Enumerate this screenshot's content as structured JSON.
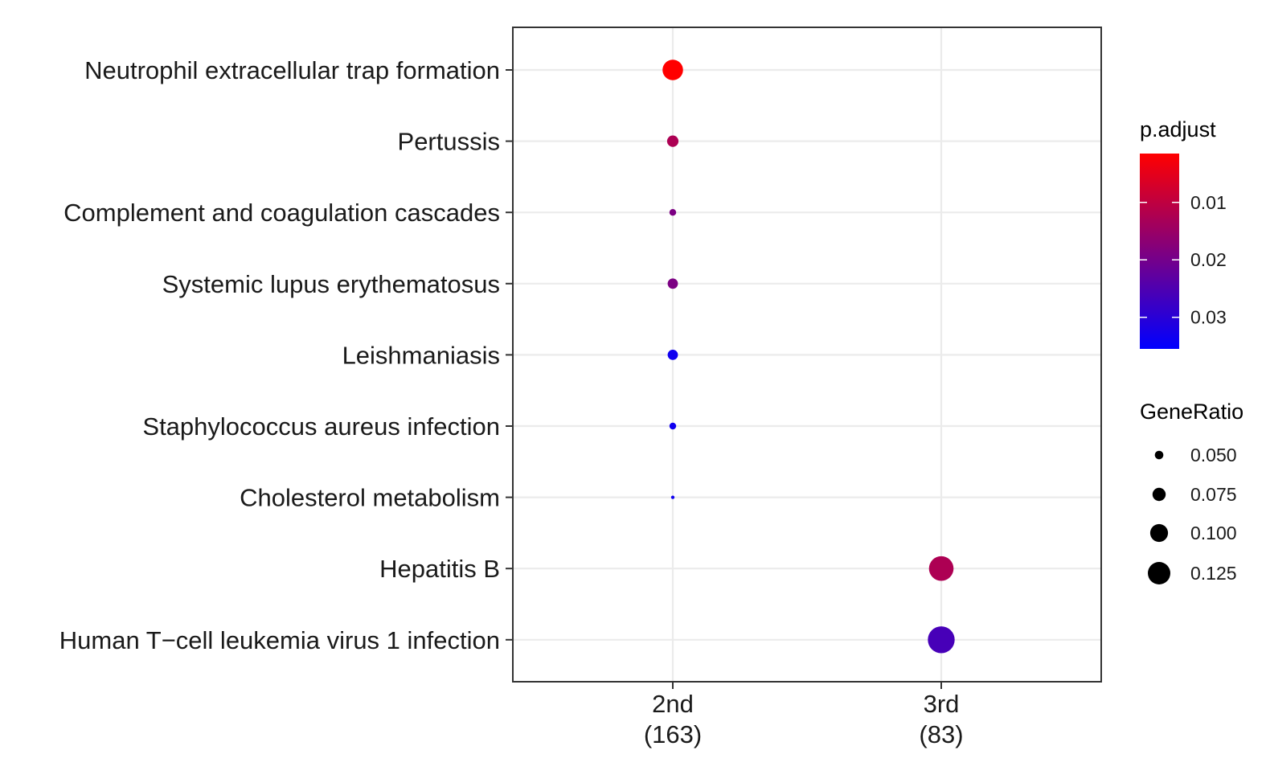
{
  "chart_data": {
    "type": "scatter",
    "title": "",
    "xlabel": "",
    "ylabel": "",
    "x_categories": [
      {
        "label": "2nd",
        "count": "(163)"
      },
      {
        "label": "3rd",
        "count": "(83)"
      }
    ],
    "y_categories": [
      "Neutrophil extracellular trap formation",
      "Pertussis",
      "Complement and coagulation cascades",
      "Systemic lupus erythematosus",
      "Leishmaniasis",
      "Staphylococcus aureus infection",
      "Cholesterol metabolism",
      "Hepatitis B",
      "Human T−cell leukemia virus 1 infection"
    ],
    "points": [
      {
        "x": "2nd",
        "y": "Neutrophil extracellular trap formation",
        "gene_ratio": 0.123,
        "p_adjust": 0.0015
      },
      {
        "x": "2nd",
        "y": "Pertussis",
        "gene_ratio": 0.074,
        "p_adjust": 0.0125
      },
      {
        "x": "2nd",
        "y": "Complement and coagulation cascades",
        "gene_ratio": 0.049,
        "p_adjust": 0.019
      },
      {
        "x": "2nd",
        "y": "Systemic lupus erythematosus",
        "gene_ratio": 0.068,
        "p_adjust": 0.019
      },
      {
        "x": "2nd",
        "y": "Leishmaniasis",
        "gene_ratio": 0.068,
        "p_adjust": 0.0335
      },
      {
        "x": "2nd",
        "y": "Staphylococcus aureus infection",
        "gene_ratio": 0.049,
        "p_adjust": 0.0335
      },
      {
        "x": "2nd",
        "y": "Cholesterol metabolism",
        "gene_ratio": 0.031,
        "p_adjust": 0.0335
      },
      {
        "x": "3rd",
        "y": "Hepatitis B",
        "gene_ratio": 0.145,
        "p_adjust": 0.0125
      },
      {
        "x": "3rd",
        "y": "Human T−cell leukemia virus 1 infection",
        "gene_ratio": 0.157,
        "p_adjust": 0.026
      }
    ],
    "legend_color": {
      "title": "p.adjust",
      "ticks": [
        0.01,
        0.02,
        0.03
      ],
      "tick_labels": [
        "0.01",
        "0.02",
        "0.03"
      ],
      "range": [
        0.0015,
        0.0355
      ],
      "low_color": "#ff0000",
      "high_color": "#0000ff"
    },
    "legend_size": {
      "title": "GeneRatio",
      "values": [
        0.05,
        0.075,
        0.1,
        0.125
      ],
      "labels": [
        "0.050",
        "0.075",
        "0.100",
        "0.125"
      ]
    },
    "grid": true,
    "legend_position": "right"
  }
}
